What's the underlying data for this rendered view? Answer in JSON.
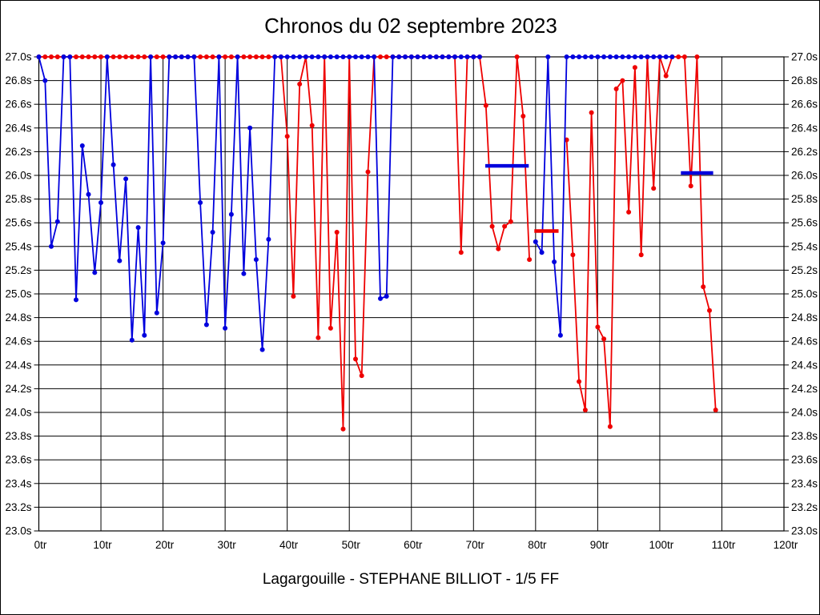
{
  "chart_data": {
    "type": "line",
    "title": "Chronos du 02 septembre 2023",
    "caption": "Lagargouille - STEPHANE BILLIOT - 1/5 FF",
    "xlim": [
      0,
      120
    ],
    "ylim": [
      23.0,
      27.0
    ],
    "grid": "on",
    "x_unit": "tr",
    "y_unit": "s",
    "clamp_value": 27.0,
    "x_ticks": [
      {
        "v": 0,
        "label": "0tr"
      },
      {
        "v": 10,
        "label": "10tr"
      },
      {
        "v": 20,
        "label": "20tr"
      },
      {
        "v": 30,
        "label": "30tr"
      },
      {
        "v": 40,
        "label": "40tr"
      },
      {
        "v": 50,
        "label": "50tr"
      },
      {
        "v": 60,
        "label": "60tr"
      },
      {
        "v": 70,
        "label": "70tr"
      },
      {
        "v": 80,
        "label": "80tr"
      },
      {
        "v": 90,
        "label": "90tr"
      },
      {
        "v": 100,
        "label": "100tr"
      },
      {
        "v": 110,
        "label": "110tr"
      },
      {
        "v": 120,
        "label": "120tr"
      }
    ],
    "y_ticks": [
      {
        "v": 27.0,
        "label": "27.0s"
      },
      {
        "v": 26.8,
        "label": "26.8s"
      },
      {
        "v": 26.6,
        "label": "26.6s"
      },
      {
        "v": 26.4,
        "label": "26.4s"
      },
      {
        "v": 26.2,
        "label": "26.2s"
      },
      {
        "v": 26.0,
        "label": "26.0s"
      },
      {
        "v": 25.8,
        "label": "25.8s"
      },
      {
        "v": 25.6,
        "label": "25.6s"
      },
      {
        "v": 25.4,
        "label": "25.4s"
      },
      {
        "v": 25.2,
        "label": "25.2s"
      },
      {
        "v": 25.0,
        "label": "25.0s"
      },
      {
        "v": 24.8,
        "label": "24.8s"
      },
      {
        "v": 24.6,
        "label": "24.6s"
      },
      {
        "v": 24.4,
        "label": "24.4s"
      },
      {
        "v": 24.2,
        "label": "24.2s"
      },
      {
        "v": 24.0,
        "label": "24.0s"
      },
      {
        "v": 23.8,
        "label": "23.8s"
      },
      {
        "v": 23.6,
        "label": "23.6s"
      },
      {
        "v": 23.4,
        "label": "23.4s"
      },
      {
        "v": 23.2,
        "label": "23.2s"
      },
      {
        "v": 23.0,
        "label": "23.0s"
      }
    ],
    "series": [
      {
        "name": "red-driver",
        "color": "#ee0000",
        "points": [
          [
            0,
            27
          ],
          [
            1,
            27
          ],
          [
            2,
            27
          ],
          [
            3,
            27
          ],
          [
            4,
            27
          ],
          [
            5,
            27
          ],
          [
            6,
            27
          ],
          [
            7,
            27
          ],
          [
            8,
            27
          ],
          [
            9,
            27
          ],
          [
            10,
            27
          ],
          [
            11,
            27
          ],
          [
            12,
            27
          ],
          [
            13,
            27
          ],
          [
            14,
            27
          ],
          [
            15,
            27
          ],
          [
            16,
            27
          ],
          [
            17,
            27
          ],
          [
            18,
            27
          ],
          [
            19,
            27
          ],
          [
            20,
            27
          ],
          [
            21,
            27
          ],
          [
            22,
            27
          ],
          [
            23,
            27
          ],
          [
            24,
            27
          ],
          [
            25,
            27
          ],
          [
            26,
            27
          ],
          [
            27,
            27
          ],
          [
            28,
            27
          ],
          [
            29,
            27
          ],
          [
            30,
            27
          ],
          [
            31,
            27
          ],
          [
            32,
            27
          ],
          [
            33,
            27
          ],
          [
            34,
            27
          ],
          [
            35,
            27
          ],
          [
            36,
            27
          ],
          [
            37,
            27
          ],
          [
            38,
            27
          ],
          [
            39,
            27
          ],
          [
            40,
            26.33
          ],
          [
            41,
            24.98
          ],
          [
            42,
            26.77
          ],
          [
            43,
            27
          ],
          [
            44,
            26.42
          ],
          [
            45,
            24.63
          ],
          [
            46,
            27
          ],
          [
            47,
            24.71
          ],
          [
            48,
            25.52
          ],
          [
            49,
            23.86
          ],
          [
            50,
            27
          ],
          [
            51,
            24.45
          ],
          [
            52,
            24.31
          ],
          [
            53,
            26.03
          ],
          [
            54,
            27
          ],
          [
            55,
            27
          ],
          [
            56,
            27
          ],
          [
            57,
            27
          ],
          [
            58,
            27
          ],
          [
            59,
            27
          ],
          [
            60,
            27
          ],
          [
            61,
            27
          ],
          [
            62,
            27
          ],
          [
            63,
            27
          ],
          [
            64,
            27
          ],
          [
            65,
            27
          ],
          [
            66,
            27
          ],
          [
            67,
            27
          ],
          [
            68,
            25.35
          ],
          [
            69,
            27
          ],
          [
            70,
            27
          ],
          [
            71,
            27
          ],
          [
            72,
            26.59
          ],
          [
            73,
            25.57
          ],
          [
            74,
            25.38
          ],
          [
            75,
            25.57
          ],
          [
            76,
            25.61
          ],
          [
            77,
            27
          ],
          [
            78,
            26.5
          ],
          [
            79,
            25.29
          ],
          [
            85,
            26.3
          ],
          [
            86,
            25.33
          ],
          [
            87,
            24.26
          ],
          [
            88,
            24.02
          ],
          [
            89,
            26.53
          ],
          [
            90,
            24.72
          ],
          [
            91,
            24.62
          ],
          [
            92,
            23.88
          ],
          [
            93,
            26.73
          ],
          [
            94,
            26.8
          ],
          [
            95,
            25.69
          ],
          [
            96,
            26.91
          ],
          [
            97,
            25.33
          ],
          [
            98,
            27
          ],
          [
            99,
            25.89
          ],
          [
            100,
            27
          ],
          [
            101,
            26.84
          ],
          [
            102,
            27
          ],
          [
            103,
            27
          ],
          [
            104,
            27
          ],
          [
            105,
            25.91
          ],
          [
            106,
            27
          ],
          [
            107,
            25.06
          ],
          [
            108,
            24.86
          ],
          [
            109,
            24.02
          ]
        ]
      },
      {
        "name": "blue-driver",
        "color": "#0000dd",
        "points": [
          [
            0,
            27
          ],
          [
            1,
            26.8
          ],
          [
            2,
            25.4
          ],
          [
            3,
            25.61
          ],
          [
            4,
            27
          ],
          [
            5,
            27
          ],
          [
            6,
            24.95
          ],
          [
            7,
            26.25
          ],
          [
            8,
            25.84
          ],
          [
            9,
            25.18
          ],
          [
            10,
            25.77
          ],
          [
            11,
            27
          ],
          [
            12,
            26.09
          ],
          [
            13,
            25.28
          ],
          [
            14,
            25.97
          ],
          [
            15,
            24.61
          ],
          [
            16,
            25.56
          ],
          [
            17,
            24.65
          ],
          [
            18,
            27
          ],
          [
            19,
            24.84
          ],
          [
            20,
            25.43
          ],
          [
            21,
            27
          ],
          [
            22,
            27
          ],
          [
            23,
            27
          ],
          [
            24,
            27
          ],
          [
            25,
            27
          ],
          [
            26,
            25.77
          ],
          [
            27,
            24.74
          ],
          [
            28,
            25.52
          ],
          [
            29,
            27
          ],
          [
            30,
            24.71
          ],
          [
            31,
            25.67
          ],
          [
            32,
            27
          ],
          [
            33,
            25.17
          ],
          [
            34,
            26.4
          ],
          [
            35,
            25.29
          ],
          [
            36,
            24.53
          ],
          [
            37,
            25.46
          ],
          [
            38,
            27
          ],
          [
            39,
            27
          ],
          [
            40,
            27
          ],
          [
            41,
            27
          ],
          [
            42,
            27
          ],
          [
            43,
            27
          ],
          [
            44,
            27
          ],
          [
            45,
            27
          ],
          [
            46,
            27
          ],
          [
            47,
            27
          ],
          [
            48,
            27
          ],
          [
            49,
            27
          ],
          [
            50,
            27
          ],
          [
            51,
            27
          ],
          [
            52,
            27
          ],
          [
            53,
            27
          ],
          [
            54,
            27
          ],
          [
            55,
            24.96
          ],
          [
            56,
            24.98
          ],
          [
            57,
            27
          ],
          [
            58,
            27
          ],
          [
            59,
            27
          ],
          [
            60,
            27
          ],
          [
            61,
            27
          ],
          [
            62,
            27
          ],
          [
            63,
            27
          ],
          [
            64,
            27
          ],
          [
            65,
            27
          ],
          [
            66,
            27
          ],
          [
            67,
            27
          ],
          [
            68,
            27
          ],
          [
            69,
            27
          ],
          [
            70,
            27
          ],
          [
            71,
            27
          ],
          [
            80,
            25.44
          ],
          [
            81,
            25.35
          ],
          [
            82,
            27
          ],
          [
            83,
            25.27
          ],
          [
            84,
            24.65
          ],
          [
            85,
            27
          ],
          [
            86,
            27
          ],
          [
            87,
            27
          ],
          [
            88,
            27
          ],
          [
            89,
            27
          ],
          [
            90,
            27
          ],
          [
            91,
            27
          ],
          [
            92,
            27
          ],
          [
            93,
            27
          ],
          [
            94,
            27
          ],
          [
            95,
            27
          ],
          [
            96,
            27
          ],
          [
            97,
            27
          ],
          [
            98,
            27
          ],
          [
            99,
            27
          ],
          [
            100,
            27
          ],
          [
            101,
            27
          ],
          [
            102,
            27
          ]
        ]
      }
    ],
    "avg_bars": [
      {
        "series": "blue-driver",
        "color": "#0000dd",
        "from_lap": 71.9,
        "to_lap": 78.9,
        "value": 26.08
      },
      {
        "series": "red-driver",
        "color": "#ee0000",
        "from_lap": 79.8,
        "to_lap": 83.7,
        "value": 25.53
      },
      {
        "series": "blue-driver",
        "color": "#0000dd",
        "from_lap": 103.4,
        "to_lap": 108.6,
        "value": 26.02
      }
    ]
  }
}
